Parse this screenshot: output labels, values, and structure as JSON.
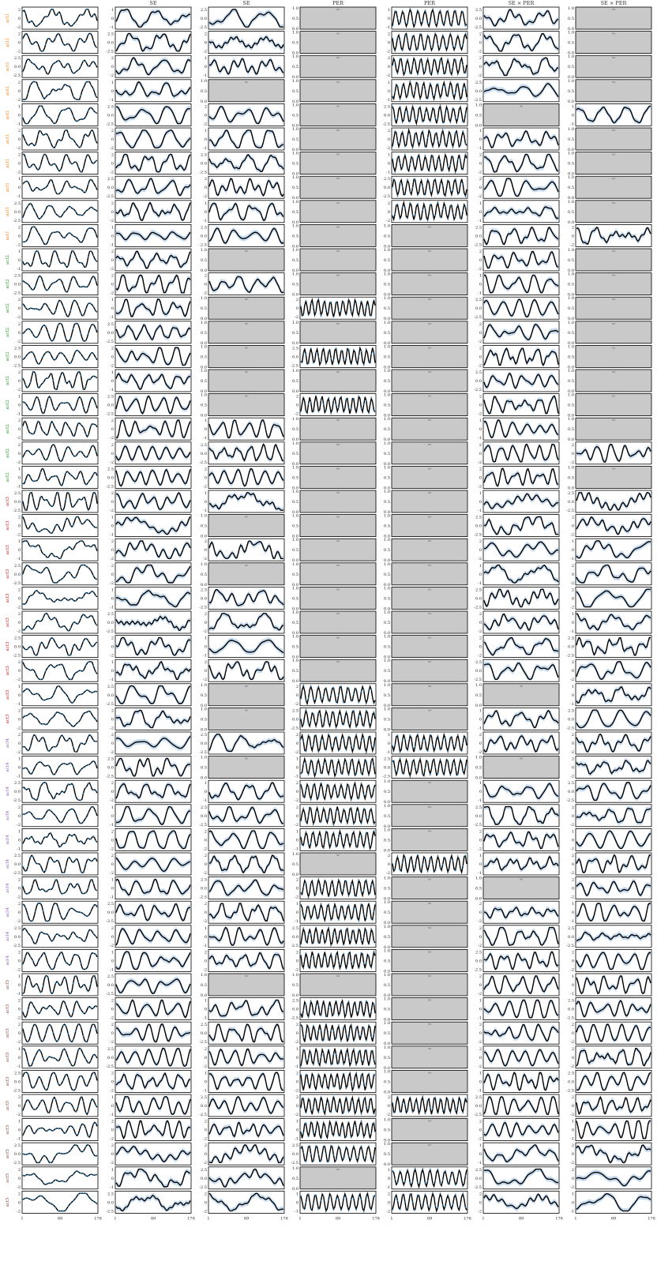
{
  "figure": {
    "column_headers": [
      "",
      "SE",
      "SE",
      "PER",
      "PER",
      "SE × PER",
      "SE × PER"
    ],
    "x_tick_labels": [
      "1",
      "89",
      "178"
    ],
    "row_groups": [
      {
        "label": "act1",
        "color": "#ff7f0e",
        "count": 10
      },
      {
        "label": "act2",
        "color": "#2ca02c",
        "count": 10
      },
      {
        "label": "act3",
        "color": "#d62728",
        "count": 10
      },
      {
        "label": "act4",
        "color": "#9467bd",
        "count": 10
      },
      {
        "label": "act5",
        "color": "#8c564b",
        "count": 10
      }
    ],
    "colors": {
      "line": "#000000",
      "points": "#1f77b4",
      "band": "#c6dbef",
      "inactive": "#c9c9c9",
      "frame": "#000000"
    }
  },
  "chart_data": {
    "type": "line",
    "layout": "small-multiples grid: 50 rows × 7 columns",
    "x": {
      "ticks": [
        1,
        89,
        178
      ],
      "range": [
        1,
        178
      ]
    },
    "y_tick_variants": {
      "a": [
        -2,
        0,
        2
      ],
      "b": [
        -1,
        0,
        1
      ],
      "c": [
        -2.5,
        0.0,
        2.5
      ],
      "d": [
        0.0,
        0.5,
        1.0
      ]
    },
    "columns": [
      "observed series with fitted mean",
      "SE component",
      "SE component",
      "PER component",
      "PER component",
      "SE × PER component",
      "SE × PER component"
    ],
    "active_mask": [
      "1110110",
      "1110110",
      "1110110",
      "1100110",
      "1110101",
      "1110110",
      "1110110",
      "1110110",
      "1110110",
      "1110011",
      "1100010",
      "1110010",
      "1101010",
      "1100010",
      "1101010",
      "1100010",
      "1101010",
      "1110010",
      "1110011",
      "1110010",
      "1110011",
      "1100011",
      "1110011",
      "1100011",
      "1110011",
      "1110011",
      "1110011",
      "1110011",
      "1101001",
      "1101011",
      "1111111",
      "1101101",
      "1111011",
      "1111011",
      "1111011",
      "1110111",
      "1111001",
      "1111011",
      "1111011",
      "1111011",
      "1100011",
      "1111011",
      "1111011",
      "1111011",
      "1111011",
      "1111111",
      "1111011",
      "1111011",
      "1110111",
      "1111111"
    ]
  }
}
